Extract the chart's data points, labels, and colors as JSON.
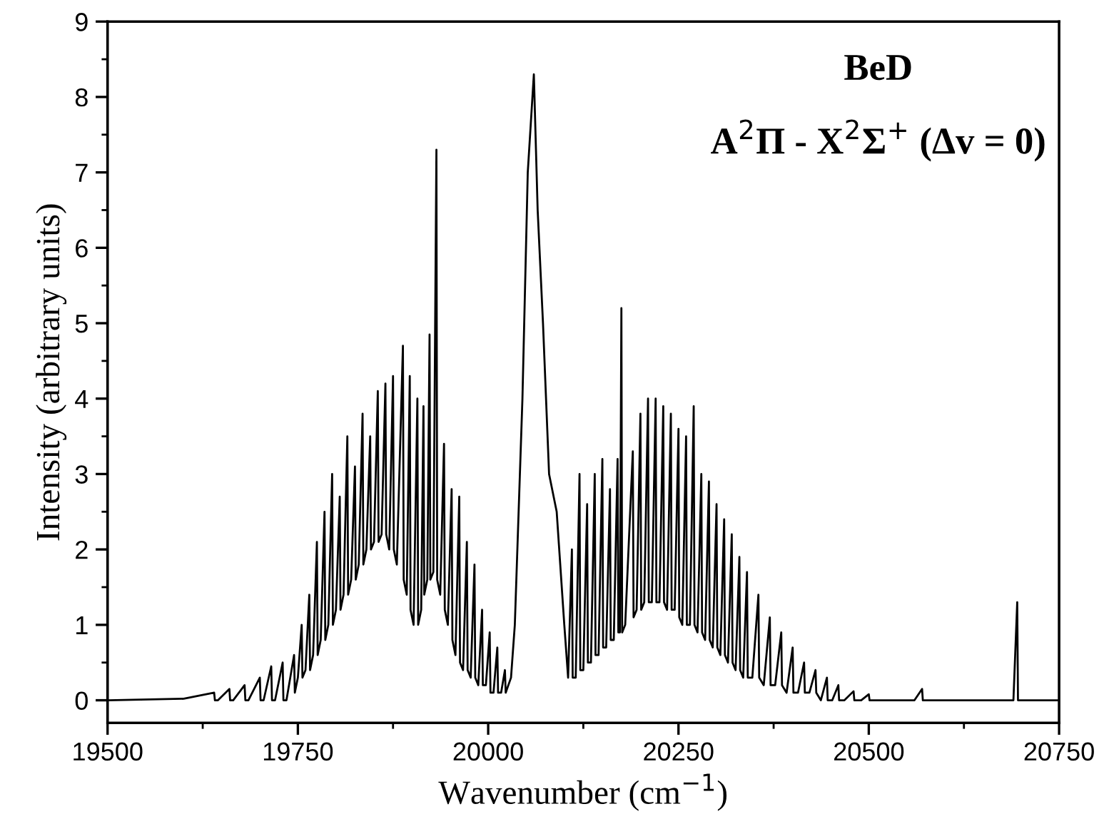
{
  "chart_data": {
    "type": "line",
    "xlabel": "Wavenumber (cm$^{−1}$)",
    "ylabel": "Intensity (arbitrary units)",
    "annotations": [
      "BeD",
      "A$^{2}$Π - X$^{2}$Σ$^{+}$ (Δv = 0)"
    ],
    "xlim": [
      19500,
      20750
    ],
    "xticks": [
      19500,
      19750,
      20000,
      20250,
      20500,
      20750
    ],
    "ylim": [
      -0.3,
      9
    ],
    "yticks": [
      0,
      1,
      2,
      3,
      4,
      5,
      6,
      7,
      8,
      9
    ],
    "grid": false,
    "legend": false,
    "marker": "none",
    "line_style": "solid",
    "series": [
      {
        "color": "#000000",
        "x": [
          19500,
          19600,
          19640,
          19641,
          19645,
          19660,
          19661,
          19665,
          19680,
          19681,
          19685,
          19700,
          19701,
          19705,
          19715,
          19716,
          19720,
          19730,
          19731,
          19735,
          19745,
          19746,
          19750,
          19755,
          19756,
          19760,
          19765,
          19766,
          19770,
          19775,
          19776,
          19780,
          19785,
          19786,
          19790,
          19795,
          19796,
          19800,
          19805,
          19806,
          19810,
          19815,
          19816,
          19820,
          19825,
          19826,
          19830,
          19835,
          19836,
          19840,
          19845,
          19846,
          19850,
          19855,
          19856,
          19860,
          19865,
          19866,
          19870,
          19875,
          19876,
          19880,
          19888,
          19889,
          19893,
          19897,
          19898,
          19902,
          19907,
          19908,
          19912,
          19915,
          19916,
          19920,
          19923,
          19924,
          19928,
          19932,
          19933,
          19937,
          19942,
          19943,
          19947,
          19952,
          19953,
          19957,
          19962,
          19963,
          19967,
          19972,
          19973,
          19977,
          19982,
          19983,
          19987,
          19992,
          19993,
          19997,
          20002,
          20003,
          20007,
          20012,
          20013,
          20017,
          20022,
          20023,
          20030,
          20035,
          20045,
          20052,
          20060,
          20065,
          20072,
          20080,
          20090,
          20100,
          20105,
          20110,
          20111,
          20115,
          20120,
          20121,
          20125,
          20130,
          20131,
          20135,
          20140,
          20141,
          20145,
          20150,
          20151,
          20155,
          20160,
          20161,
          20165,
          20170,
          20171,
          20173,
          20175,
          20176,
          20180,
          20190,
          20191,
          20195,
          20200,
          20201,
          20205,
          20210,
          20211,
          20215,
          20220,
          20221,
          20225,
          20230,
          20231,
          20235,
          20240,
          20241,
          20245,
          20250,
          20251,
          20255,
          20260,
          20261,
          20265,
          20270,
          20271,
          20275,
          20280,
          20281,
          20285,
          20290,
          20291,
          20295,
          20300,
          20301,
          20305,
          20310,
          20311,
          20315,
          20320,
          20321,
          20325,
          20330,
          20331,
          20335,
          20340,
          20341,
          20347,
          20355,
          20356,
          20362,
          20370,
          20371,
          20377,
          20385,
          20386,
          20392,
          20400,
          20401,
          20407,
          20415,
          20416,
          20422,
          20430,
          20431,
          20437,
          20445,
          20446,
          20452,
          20460,
          20461,
          20468,
          20480,
          20481,
          20490,
          20500,
          20501,
          20560,
          20570,
          20571,
          20690,
          20695,
          20696,
          20750
        ],
        "values": [
          0,
          0.02,
          0.1,
          0,
          0,
          0.15,
          0,
          0,
          0.2,
          0,
          0,
          0.3,
          0,
          0,
          0.45,
          0,
          0,
          0.5,
          0,
          0,
          0.6,
          0.1,
          0.3,
          1.0,
          0.3,
          0.4,
          1.4,
          0.4,
          0.6,
          2.1,
          0.6,
          0.8,
          2.5,
          0.8,
          1.0,
          3.0,
          1.0,
          1.2,
          2.7,
          1.2,
          1.4,
          3.5,
          1.4,
          1.6,
          3.1,
          1.6,
          1.8,
          3.8,
          1.8,
          2.0,
          3.5,
          2.0,
          2.1,
          4.1,
          2.1,
          2.2,
          4.2,
          2.2,
          2.0,
          4.3,
          2.0,
          1.8,
          4.7,
          1.6,
          1.4,
          4.3,
          1.2,
          1.0,
          4.0,
          1.0,
          1.2,
          3.9,
          1.4,
          1.6,
          4.85,
          1.6,
          1.7,
          7.3,
          1.6,
          1.4,
          3.4,
          1.2,
          1.0,
          2.8,
          0.8,
          0.6,
          2.7,
          0.5,
          0.4,
          2.1,
          0.4,
          0.3,
          1.8,
          0.3,
          0.2,
          1.2,
          0.2,
          0.2,
          0.9,
          0.1,
          0.1,
          0.7,
          0.1,
          0.1,
          0.4,
          0.1,
          0.3,
          1.0,
          4.0,
          7.0,
          8.3,
          6.5,
          5.0,
          3.0,
          2.5,
          1.0,
          0.3,
          2.0,
          0.3,
          0.3,
          3.0,
          0.4,
          0.4,
          2.6,
          0.5,
          0.5,
          3.0,
          0.6,
          0.6,
          3.2,
          0.7,
          0.7,
          2.8,
          0.8,
          0.8,
          3.2,
          0.9,
          0.9,
          5.2,
          0.9,
          1.0,
          3.3,
          1.1,
          1.2,
          3.8,
          1.2,
          1.3,
          4.0,
          1.3,
          1.3,
          4.0,
          1.3,
          1.3,
          3.9,
          1.3,
          1.2,
          3.8,
          1.2,
          1.2,
          3.6,
          1.1,
          1.0,
          3.5,
          1.0,
          1.0,
          3.9,
          1.0,
          0.9,
          3.0,
          0.9,
          0.8,
          2.9,
          0.8,
          0.7,
          2.6,
          0.7,
          0.6,
          2.4,
          0.6,
          0.5,
          2.2,
          0.5,
          0.4,
          1.9,
          0.4,
          0.3,
          1.7,
          0.3,
          0.3,
          1.4,
          0.3,
          0.2,
          1.1,
          0.2,
          0.2,
          0.9,
          0.2,
          0.1,
          0.7,
          0.1,
          0.1,
          0.5,
          0.1,
          0.1,
          0.4,
          0.1,
          0,
          0.3,
          0,
          0,
          0.2,
          0,
          0,
          0.12,
          0,
          0,
          0.08,
          0,
          0,
          0.15,
          0,
          0,
          1.3,
          0,
          0
        ]
      }
    ]
  }
}
